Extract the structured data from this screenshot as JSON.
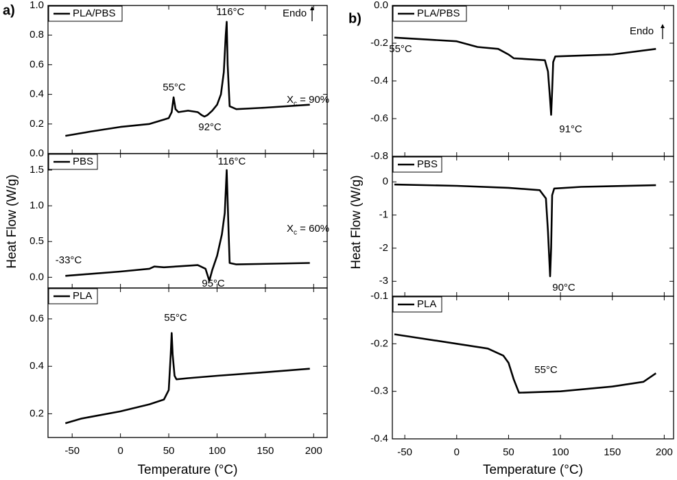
{
  "chart_data": [
    {
      "type": "line",
      "label": "a)",
      "xlabel": "Temperature (°C)",
      "ylabel": "Heat Flow (W/g)",
      "endo": "Endo",
      "xlim": [
        -75,
        214
      ],
      "xticks": [
        -50,
        0,
        50,
        100,
        150,
        200
      ],
      "subplots": [
        {
          "ylim": [
            0,
            1.0
          ],
          "yticks": [
            {
              "value": 0,
              "label": "0.0"
            },
            0.2,
            0.4,
            0.6,
            0.8,
            {
              "value": 1,
              "label": "1.0"
            }
          ],
          "series": [
            {
              "name": "PLA/PBS",
              "color": "#000000",
              "x": [
                -57,
                -30,
                0,
                30,
                40,
                50,
                53,
                55,
                57,
                60,
                70,
                80,
                84,
                87,
                90,
                95,
                100,
                104,
                107,
                109,
                110,
                111,
                113,
                120,
                150,
                196
              ],
              "values": [
                0.12,
                0.15,
                0.18,
                0.2,
                0.22,
                0.24,
                0.28,
                0.38,
                0.3,
                0.28,
                0.29,
                0.28,
                0.26,
                0.25,
                0.26,
                0.29,
                0.33,
                0.4,
                0.55,
                0.8,
                0.89,
                0.6,
                0.32,
                0.3,
                0.31,
                0.33
              ]
            }
          ],
          "annotations": [
            {
              "text": "116°C"
            },
            {
              "text": "55°C"
            },
            {
              "text": "92°C"
            },
            {
              "text": "X",
              "sub": "c",
              "tail": " = 90%"
            }
          ]
        },
        {
          "ylim": [
            -0.15,
            1.73
          ],
          "yticks": [
            {
              "value": 0,
              "label": "0.0"
            },
            0.5,
            {
              "value": 1,
              "label": "1.0"
            },
            1.5
          ],
          "series": [
            {
              "name": "PBS",
              "color": "#000000",
              "x": [
                -57,
                0,
                30,
                35,
                45,
                80,
                88,
                92,
                95,
                100,
                105,
                108,
                110,
                112,
                113,
                120,
                196
              ],
              "values": [
                0.02,
                0.08,
                0.12,
                0.15,
                0.14,
                0.17,
                0.12,
                -0.05,
                0.1,
                0.3,
                0.6,
                0.9,
                1.5,
                0.6,
                0.2,
                0.18,
                0.2
              ]
            }
          ],
          "annotations": [
            {
              "text": "116°C"
            },
            {
              "text": "-33°C"
            },
            {
              "text": "95°C"
            },
            {
              "text": "X",
              "sub": "c",
              "tail": " = 60%"
            }
          ]
        },
        {
          "ylim": [
            0.1,
            0.73
          ],
          "yticks": [
            0.2,
            0.4,
            0.6
          ],
          "series": [
            {
              "name": "PLA",
              "color": "#000000",
              "x": [
                -57,
                -40,
                0,
                30,
                45,
                50,
                52,
                53,
                54,
                56,
                58,
                70,
                100,
                150,
                196
              ],
              "values": [
                0.16,
                0.18,
                0.21,
                0.24,
                0.26,
                0.3,
                0.45,
                0.54,
                0.45,
                0.36,
                0.345,
                0.35,
                0.36,
                0.375,
                0.39
              ]
            }
          ],
          "annotations": [
            {
              "text": "55°C"
            }
          ]
        }
      ]
    },
    {
      "type": "line",
      "label": "b)",
      "xlabel": "Temperature (°C)",
      "ylabel": "Heat Flow (W/g)",
      "endo": "Endo",
      "xlim": [
        -62,
        209
      ],
      "xticks": [
        -50,
        0,
        50,
        100,
        150,
        200
      ],
      "subplots": [
        {
          "ylim": [
            -0.8,
            0.0
          ],
          "yticks": [
            {
              "value": 0,
              "label": "0.0"
            },
            -0.2,
            -0.4,
            -0.6,
            -0.8
          ],
          "series": [
            {
              "name": "PLA/PBS",
              "color": "#000000",
              "x": [
                -60,
                0,
                20,
                40,
                50,
                55,
                70,
                85,
                88,
                90,
                91,
                92,
                93,
                95,
                150,
                192
              ],
              "values": [
                -0.17,
                -0.19,
                -0.22,
                -0.23,
                -0.26,
                -0.28,
                -0.285,
                -0.29,
                -0.35,
                -0.5,
                -0.58,
                -0.45,
                -0.3,
                -0.27,
                -0.26,
                -0.23
              ]
            }
          ],
          "annotations": [
            {
              "text": "55°C"
            },
            {
              "text": "91°C"
            }
          ]
        },
        {
          "ylim": [
            -3.45,
            0.77
          ],
          "yticks": [
            -3,
            -2,
            -1,
            0
          ],
          "series": [
            {
              "name": "PBS",
              "color": "#000000",
              "x": [
                -60,
                0,
                50,
                80,
                86,
                88,
                90,
                91,
                92,
                94,
                120,
                192
              ],
              "values": [
                -0.08,
                -0.12,
                -0.18,
                -0.25,
                -0.5,
                -1.5,
                -2.85,
                -2.0,
                -0.4,
                -0.2,
                -0.15,
                -0.1
              ]
            }
          ],
          "annotations": [
            {
              "text": "90°C"
            }
          ]
        },
        {
          "ylim": [
            -0.4,
            -0.1
          ],
          "yticks": [
            -0.4,
            -0.3,
            -0.2,
            -0.1
          ],
          "series": [
            {
              "name": "PLA",
              "color": "#000000",
              "x": [
                -60,
                0,
                30,
                45,
                50,
                55,
                60,
                100,
                150,
                180,
                192
              ],
              "values": [
                -0.18,
                -0.2,
                -0.21,
                -0.225,
                -0.24,
                -0.275,
                -0.303,
                -0.3,
                -0.29,
                -0.28,
                -0.262
              ]
            }
          ],
          "annotations": [
            {
              "text": "55°C"
            }
          ]
        }
      ]
    }
  ]
}
